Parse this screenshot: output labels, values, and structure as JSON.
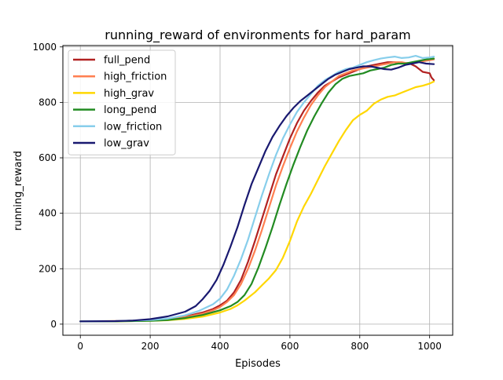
{
  "chart_data": {
    "type": "line",
    "title": "running_reward of environments for hard_param",
    "xlabel": "Episodes",
    "ylabel": "running_reward",
    "xlim": [
      -50,
      1066
    ],
    "ylim": [
      -40,
      1005
    ],
    "xticks": [
      0,
      200,
      400,
      600,
      800,
      1000
    ],
    "yticks": [
      0,
      200,
      400,
      600,
      800,
      1000
    ],
    "grid": true,
    "legend_position": "top-left",
    "series": [
      {
        "name": "full_pend",
        "color": "#b22222",
        "points": [
          [
            0,
            10
          ],
          [
            100,
            11
          ],
          [
            200,
            14
          ],
          [
            250,
            18
          ],
          [
            300,
            27
          ],
          [
            350,
            42
          ],
          [
            380,
            55
          ],
          [
            400,
            68
          ],
          [
            420,
            85
          ],
          [
            440,
            115
          ],
          [
            460,
            160
          ],
          [
            480,
            225
          ],
          [
            500,
            300
          ],
          [
            520,
            380
          ],
          [
            540,
            460
          ],
          [
            560,
            540
          ],
          [
            580,
            605
          ],
          [
            600,
            670
          ],
          [
            620,
            725
          ],
          [
            640,
            770
          ],
          [
            660,
            805
          ],
          [
            680,
            835
          ],
          [
            700,
            860
          ],
          [
            720,
            875
          ],
          [
            740,
            890
          ],
          [
            760,
            900
          ],
          [
            780,
            910
          ],
          [
            800,
            920
          ],
          [
            820,
            930
          ],
          [
            840,
            935
          ],
          [
            860,
            940
          ],
          [
            880,
            945
          ],
          [
            900,
            945
          ],
          [
            920,
            940
          ],
          [
            940,
            942
          ],
          [
            960,
            930
          ],
          [
            980,
            910
          ],
          [
            1000,
            905
          ],
          [
            1005,
            890
          ],
          [
            1012,
            880
          ]
        ]
      },
      {
        "name": "high_friction",
        "color": "#ff7f50",
        "points": [
          [
            0,
            10
          ],
          [
            100,
            11
          ],
          [
            200,
            14
          ],
          [
            250,
            17
          ],
          [
            300,
            25
          ],
          [
            350,
            38
          ],
          [
            380,
            50
          ],
          [
            400,
            62
          ],
          [
            420,
            80
          ],
          [
            440,
            105
          ],
          [
            460,
            145
          ],
          [
            480,
            200
          ],
          [
            500,
            265
          ],
          [
            520,
            340
          ],
          [
            540,
            420
          ],
          [
            560,
            500
          ],
          [
            580,
            570
          ],
          [
            600,
            635
          ],
          [
            620,
            695
          ],
          [
            640,
            745
          ],
          [
            660,
            790
          ],
          [
            680,
            825
          ],
          [
            700,
            855
          ],
          [
            720,
            875
          ],
          [
            740,
            895
          ],
          [
            760,
            905
          ],
          [
            780,
            915
          ],
          [
            800,
            920
          ],
          [
            820,
            925
          ],
          [
            840,
            930
          ],
          [
            860,
            935
          ],
          [
            880,
            940
          ],
          [
            900,
            945
          ],
          [
            920,
            945
          ],
          [
            940,
            940
          ],
          [
            960,
            945
          ],
          [
            980,
            948
          ],
          [
            1000,
            952
          ],
          [
            1012,
            955
          ]
        ]
      },
      {
        "name": "high_grav",
        "color": "#ffd700",
        "points": [
          [
            0,
            10
          ],
          [
            100,
            10
          ],
          [
            200,
            12
          ],
          [
            250,
            14
          ],
          [
            300,
            19
          ],
          [
            350,
            27
          ],
          [
            400,
            42
          ],
          [
            430,
            55
          ],
          [
            450,
            68
          ],
          [
            470,
            85
          ],
          [
            500,
            115
          ],
          [
            520,
            140
          ],
          [
            540,
            165
          ],
          [
            560,
            195
          ],
          [
            580,
            240
          ],
          [
            600,
            300
          ],
          [
            620,
            370
          ],
          [
            640,
            425
          ],
          [
            660,
            470
          ],
          [
            680,
            520
          ],
          [
            700,
            570
          ],
          [
            720,
            615
          ],
          [
            740,
            660
          ],
          [
            760,
            700
          ],
          [
            780,
            735
          ],
          [
            800,
            755
          ],
          [
            820,
            770
          ],
          [
            840,
            795
          ],
          [
            860,
            810
          ],
          [
            880,
            820
          ],
          [
            900,
            825
          ],
          [
            920,
            835
          ],
          [
            940,
            845
          ],
          [
            960,
            855
          ],
          [
            980,
            860
          ],
          [
            1000,
            868
          ],
          [
            1012,
            875
          ]
        ]
      },
      {
        "name": "long_pend",
        "color": "#228b22",
        "points": [
          [
            0,
            10
          ],
          [
            100,
            10
          ],
          [
            200,
            12
          ],
          [
            250,
            15
          ],
          [
            300,
            22
          ],
          [
            350,
            33
          ],
          [
            400,
            50
          ],
          [
            430,
            65
          ],
          [
            450,
            80
          ],
          [
            470,
            105
          ],
          [
            490,
            145
          ],
          [
            510,
            205
          ],
          [
            530,
            275
          ],
          [
            550,
            350
          ],
          [
            570,
            430
          ],
          [
            590,
            505
          ],
          [
            610,
            575
          ],
          [
            630,
            640
          ],
          [
            650,
            700
          ],
          [
            670,
            750
          ],
          [
            690,
            795
          ],
          [
            710,
            835
          ],
          [
            730,
            865
          ],
          [
            750,
            885
          ],
          [
            770,
            895
          ],
          [
            790,
            900
          ],
          [
            810,
            905
          ],
          [
            830,
            915
          ],
          [
            850,
            920
          ],
          [
            870,
            925
          ],
          [
            890,
            935
          ],
          [
            910,
            940
          ],
          [
            930,
            940
          ],
          [
            950,
            945
          ],
          [
            970,
            950
          ],
          [
            990,
            955
          ],
          [
            1012,
            958
          ]
        ]
      },
      {
        "name": "low_friction",
        "color": "#87ceeb",
        "points": [
          [
            0,
            10
          ],
          [
            100,
            11
          ],
          [
            200,
            15
          ],
          [
            250,
            20
          ],
          [
            300,
            32
          ],
          [
            340,
            48
          ],
          [
            380,
            72
          ],
          [
            400,
            92
          ],
          [
            420,
            125
          ],
          [
            440,
            175
          ],
          [
            460,
            235
          ],
          [
            480,
            305
          ],
          [
            500,
            385
          ],
          [
            520,
            465
          ],
          [
            540,
            540
          ],
          [
            560,
            610
          ],
          [
            580,
            670
          ],
          [
            600,
            720
          ],
          [
            620,
            765
          ],
          [
            640,
            800
          ],
          [
            660,
            830
          ],
          [
            680,
            860
          ],
          [
            700,
            880
          ],
          [
            720,
            895
          ],
          [
            740,
            910
          ],
          [
            760,
            920
          ],
          [
            780,
            925
          ],
          [
            800,
            935
          ],
          [
            820,
            945
          ],
          [
            840,
            952
          ],
          [
            860,
            958
          ],
          [
            880,
            962
          ],
          [
            900,
            965
          ],
          [
            920,
            960
          ],
          [
            940,
            962
          ],
          [
            960,
            968
          ],
          [
            980,
            960
          ],
          [
            1000,
            962
          ],
          [
            1012,
            965
          ]
        ]
      },
      {
        "name": "low_grav",
        "color": "#191970",
        "points": [
          [
            0,
            10
          ],
          [
            100,
            11
          ],
          [
            150,
            13
          ],
          [
            200,
            18
          ],
          [
            250,
            28
          ],
          [
            300,
            45
          ],
          [
            330,
            65
          ],
          [
            350,
            90
          ],
          [
            370,
            120
          ],
          [
            390,
            160
          ],
          [
            410,
            215
          ],
          [
            430,
            280
          ],
          [
            450,
            350
          ],
          [
            470,
            430
          ],
          [
            490,
            505
          ],
          [
            510,
            565
          ],
          [
            530,
            625
          ],
          [
            550,
            675
          ],
          [
            570,
            715
          ],
          [
            590,
            750
          ],
          [
            610,
            780
          ],
          [
            630,
            805
          ],
          [
            650,
            825
          ],
          [
            670,
            845
          ],
          [
            690,
            865
          ],
          [
            710,
            885
          ],
          [
            730,
            900
          ],
          [
            750,
            910
          ],
          [
            770,
            920
          ],
          [
            790,
            925
          ],
          [
            810,
            930
          ],
          [
            830,
            930
          ],
          [
            850,
            925
          ],
          [
            870,
            920
          ],
          [
            890,
            918
          ],
          [
            910,
            925
          ],
          [
            930,
            935
          ],
          [
            950,
            940
          ],
          [
            970,
            945
          ],
          [
            990,
            940
          ],
          [
            1012,
            938
          ]
        ]
      }
    ]
  }
}
